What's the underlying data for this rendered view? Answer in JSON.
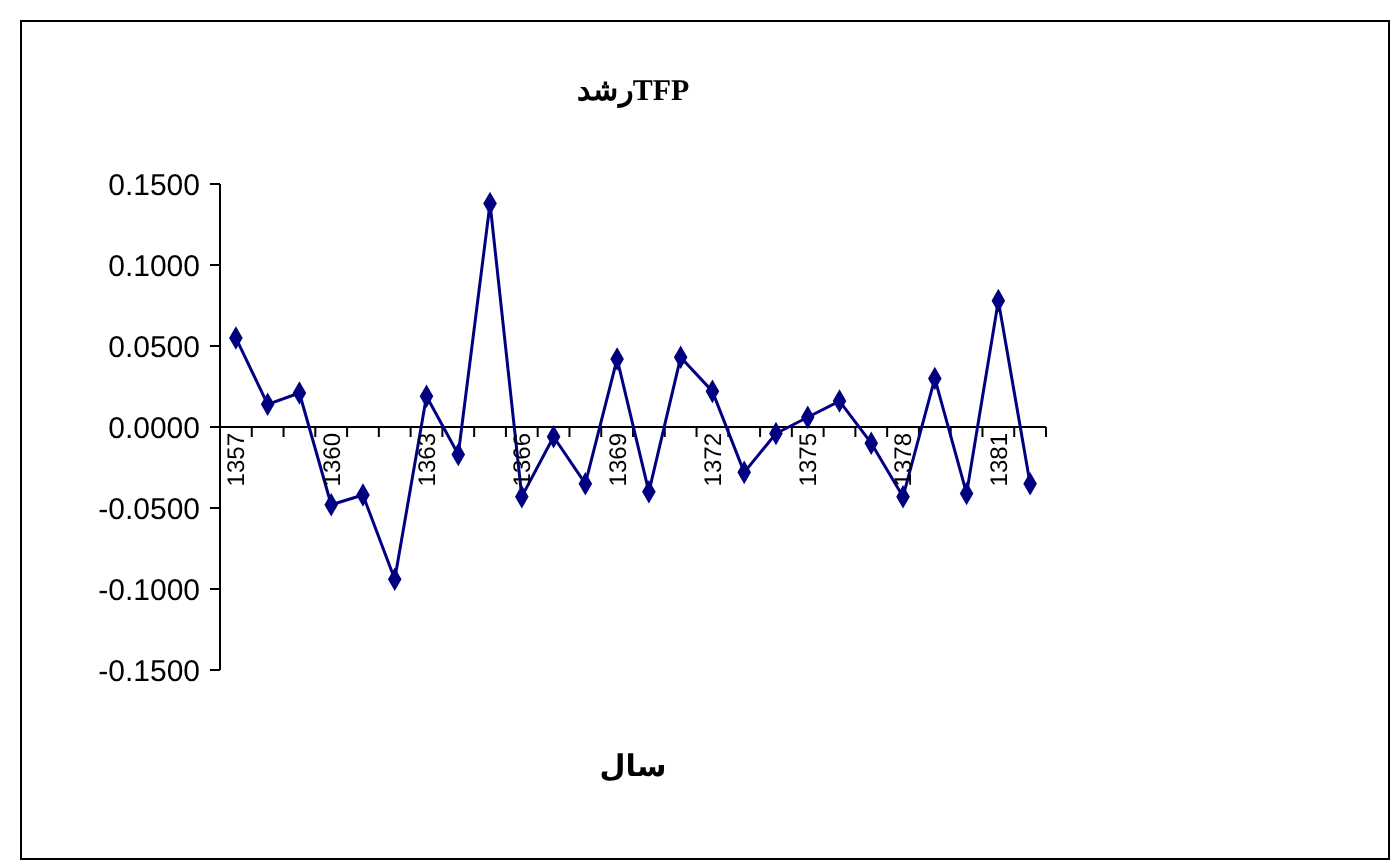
{
  "chart_data": {
    "type": "line",
    "title": "رشدTFP",
    "xlabel": "سال",
    "categories": [
      "1357",
      null,
      null,
      "1360",
      null,
      null,
      "1363",
      null,
      null,
      "1366",
      null,
      null,
      "1369",
      null,
      null,
      "1372",
      null,
      null,
      "1375",
      null,
      null,
      "1378",
      null,
      null,
      "1381",
      null
    ],
    "series": [
      {
        "color": "#000080",
        "values": [
          0.055,
          0.014,
          0.021,
          -0.048,
          -0.042,
          -0.094,
          0.019,
          -0.017,
          0.138,
          -0.043,
          -0.006,
          -0.035,
          0.042,
          -0.04,
          0.043,
          0.022,
          -0.028,
          -0.004,
          0.006,
          0.016,
          -0.01,
          -0.043,
          0.03,
          -0.041,
          0.078,
          -0.035
        ]
      }
    ],
    "ylim": [
      -0.15,
      0.15
    ],
    "yticks": [
      {
        "value": -0.15,
        "label": "-0.1500"
      },
      {
        "value": -0.1,
        "label": "-0.1000"
      },
      {
        "value": -0.05,
        "label": "-0.0500"
      },
      {
        "value": 0,
        "label": "0.0000"
      },
      {
        "value": 0.05,
        "label": "0.0500"
      },
      {
        "value": 0.1,
        "label": "0.1000"
      },
      {
        "value": 0.15,
        "label": "0.1500"
      }
    ],
    "marker": "diamond",
    "line_style": "solid",
    "grid": false
  }
}
